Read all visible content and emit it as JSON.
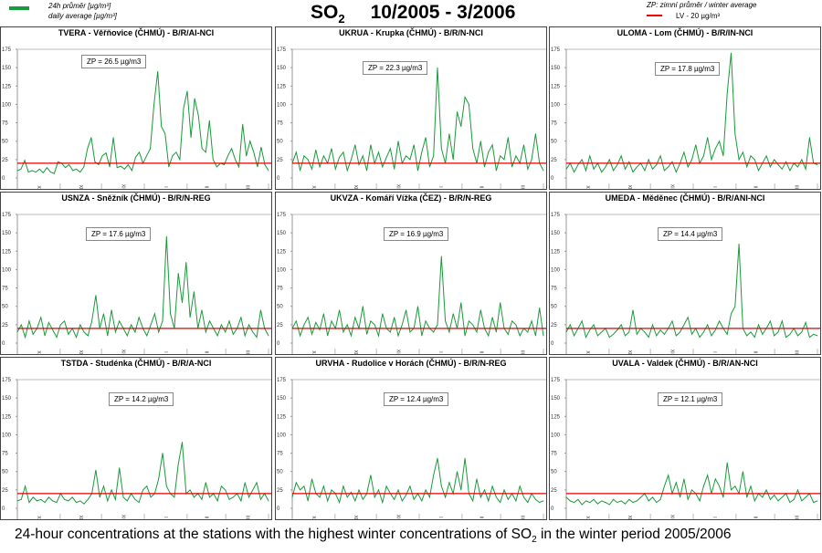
{
  "header": {
    "title_main": "SO",
    "title_sub": "2",
    "period": "10/2005 - 3/2006",
    "legend_left": {
      "line1": "24h průměr [µg/m³]",
      "line2": "daily average [µg/m³]",
      "color": "#1a9a3a"
    },
    "legend_right": {
      "line1": "ZP: zimní průměr /  winter average",
      "line2": "LV  - 20 µg/m³",
      "color": "#e00000"
    }
  },
  "caption": {
    "pre": "24-hour concentrations at the stations with the highest winter concentrations of SO",
    "sub": "2",
    "post": " in the winter period 2005/2006"
  },
  "chart_data": [
    {
      "type": "line",
      "title": "TVERA -  Věřňovice (ČHMÚ) - B/R/AI-NCI",
      "zp": "ZP = 26.5 µg/m3",
      "ylim": [
        0,
        175
      ],
      "yticks": [
        0,
        25,
        50,
        75,
        100,
        125,
        150,
        175
      ],
      "xticks": [
        "X",
        "XI",
        "XII",
        "I",
        "II",
        "III"
      ],
      "limit": 20,
      "values": [
        10,
        12,
        24,
        8,
        10,
        8,
        12,
        7,
        14,
        8,
        6,
        22,
        20,
        14,
        18,
        10,
        12,
        8,
        15,
        40,
        55,
        22,
        18,
        30,
        34,
        15,
        55,
        14,
        16,
        12,
        18,
        10,
        28,
        35,
        20,
        30,
        40,
        100,
        145,
        70,
        60,
        15,
        30,
        35,
        25,
        95,
        118,
        55,
        108,
        85,
        40,
        35,
        78,
        25,
        15,
        20,
        18,
        30,
        40,
        25,
        15,
        73,
        30,
        50,
        35,
        15,
        42,
        18,
        10
      ]
    },
    {
      "type": "line",
      "title": "UKRUA - Krupka (ČHMÚ) - B/R/N-NCI",
      "zp": "ZP = 22.3 µg/m3",
      "ylim": [
        0,
        175
      ],
      "yticks": [
        0,
        25,
        50,
        75,
        100,
        125,
        150,
        175
      ],
      "xticks": [
        "X",
        "XI",
        "XII",
        "I",
        "II",
        "III"
      ],
      "limit": 20,
      "values": [
        20,
        35,
        10,
        30,
        25,
        12,
        38,
        15,
        30,
        20,
        40,
        12,
        28,
        35,
        10,
        25,
        45,
        18,
        30,
        10,
        45,
        20,
        35,
        15,
        28,
        40,
        12,
        50,
        20,
        30,
        25,
        45,
        10,
        35,
        55,
        15,
        30,
        150,
        40,
        20,
        60,
        25,
        90,
        70,
        110,
        100,
        40,
        20,
        50,
        15,
        35,
        45,
        10,
        30,
        25,
        55,
        15,
        30,
        20,
        45,
        12,
        25,
        60,
        20,
        10
      ]
    },
    {
      "type": "line",
      "title": "ULOMA - Lom (ČHMÚ) - B/R/IN-NCI",
      "zp": "ZP = 17.8 µg/m3",
      "ylim": [
        0,
        175
      ],
      "yticks": [
        0,
        25,
        50,
        75,
        100,
        125,
        150,
        175
      ],
      "xticks": [
        "X",
        "XI",
        "XII",
        "I",
        "II",
        "III"
      ],
      "limit": 20,
      "values": [
        12,
        20,
        8,
        18,
        25,
        10,
        30,
        12,
        20,
        8,
        15,
        25,
        10,
        18,
        30,
        12,
        22,
        8,
        15,
        20,
        10,
        25,
        12,
        18,
        30,
        10,
        15,
        22,
        8,
        20,
        35,
        15,
        25,
        45,
        20,
        30,
        55,
        25,
        40,
        50,
        30,
        115,
        170,
        60,
        25,
        35,
        15,
        30,
        25,
        10,
        20,
        30,
        15,
        25,
        18,
        12,
        22,
        10,
        20,
        15,
        25,
        12,
        55,
        20,
        18
      ]
    },
    {
      "type": "line",
      "title": "USNZA - Sněžník (ČHMÚ) - B/R/N-REG",
      "zp": "ZP = 17.6 µg/m3",
      "ylim": [
        0,
        175
      ],
      "yticks": [
        0,
        25,
        50,
        75,
        100,
        125,
        150,
        175
      ],
      "xticks": [
        "X",
        "XI",
        "XII",
        "I",
        "II",
        "III"
      ],
      "limit": 20,
      "values": [
        15,
        25,
        8,
        30,
        12,
        20,
        35,
        10,
        28,
        18,
        8,
        25,
        30,
        12,
        20,
        8,
        25,
        15,
        10,
        30,
        65,
        20,
        40,
        10,
        45,
        15,
        30,
        20,
        10,
        25,
        15,
        35,
        20,
        10,
        25,
        40,
        15,
        30,
        145,
        40,
        20,
        95,
        55,
        110,
        35,
        70,
        20,
        45,
        15,
        30,
        20,
        10,
        25,
        15,
        30,
        12,
        20,
        35,
        10,
        25,
        15,
        8,
        45,
        20,
        10
      ]
    },
    {
      "type": "line",
      "title": "UKVZA - Komáří Vížka (ČEZ) - B/R/N-REG",
      "zp": "ZP = 16.9 µg/m3",
      "ylim": [
        0,
        175
      ],
      "yticks": [
        0,
        25,
        50,
        75,
        100,
        125,
        150,
        175
      ],
      "xticks": [
        "X",
        "XI",
        "XII",
        "I",
        "II",
        "III"
      ],
      "limit": 20,
      "values": [
        20,
        30,
        10,
        25,
        35,
        12,
        28,
        18,
        40,
        10,
        30,
        20,
        45,
        15,
        25,
        10,
        35,
        20,
        50,
        12,
        30,
        25,
        10,
        40,
        20,
        15,
        35,
        10,
        25,
        45,
        15,
        20,
        50,
        10,
        30,
        20,
        15,
        25,
        118,
        30,
        15,
        40,
        20,
        55,
        10,
        30,
        25,
        15,
        45,
        20,
        10,
        35,
        15,
        55,
        20,
        12,
        30,
        25,
        10,
        20,
        15,
        30,
        10,
        48,
        10
      ]
    },
    {
      "type": "line",
      "title": "UMEDA - Měděnec (ČHMÚ) - B/R/ANI-NCI",
      "zp": "ZP = 14.4 µg/m3",
      "ylim": [
        0,
        175
      ],
      "yticks": [
        0,
        25,
        50,
        75,
        100,
        125,
        150,
        175
      ],
      "xticks": [
        "X",
        "XI",
        "XII",
        "I",
        "II",
        "III"
      ],
      "limit": 20,
      "values": [
        15,
        25,
        10,
        20,
        30,
        8,
        18,
        25,
        10,
        15,
        20,
        8,
        12,
        18,
        25,
        10,
        15,
        45,
        12,
        20,
        15,
        8,
        25,
        10,
        18,
        12,
        20,
        30,
        10,
        15,
        25,
        35,
        12,
        20,
        8,
        15,
        25,
        10,
        18,
        30,
        20,
        12,
        40,
        50,
        135,
        20,
        10,
        15,
        8,
        25,
        12,
        20,
        30,
        10,
        15,
        30,
        8,
        12,
        20,
        10,
        15,
        28,
        8,
        12,
        10
      ]
    },
    {
      "type": "line",
      "title": "TSTDA - Studénka (ČHMÚ) - B/R/A-NCI",
      "zp": "ZP = 14.2 µg/m3",
      "ylim": [
        0,
        175
      ],
      "yticks": [
        0,
        25,
        50,
        75,
        100,
        125,
        150,
        175
      ],
      "xticks": [
        "X",
        "XI",
        "XII",
        "I",
        "II",
        "III"
      ],
      "limit": 20,
      "values": [
        10,
        12,
        30,
        8,
        15,
        10,
        12,
        8,
        15,
        10,
        8,
        20,
        12,
        10,
        15,
        8,
        10,
        6,
        12,
        20,
        52,
        15,
        30,
        10,
        25,
        12,
        55,
        15,
        10,
        20,
        12,
        8,
        25,
        30,
        15,
        20,
        40,
        75,
        30,
        20,
        15,
        60,
        90,
        20,
        25,
        15,
        20,
        12,
        35,
        15,
        20,
        10,
        30,
        25,
        12,
        15,
        20,
        10,
        35,
        15,
        25,
        35,
        12,
        20,
        10
      ]
    },
    {
      "type": "line",
      "title": "URVHA - Rudolice v Horách (ČHMÚ) - B/R/N-REG",
      "zp": "ZP = 12.4 µg/m3",
      "ylim": [
        0,
        175
      ],
      "yticks": [
        0,
        25,
        50,
        75,
        100,
        125,
        150,
        175
      ],
      "xticks": [
        "X",
        "XI",
        "XII",
        "I",
        "II",
        "III"
      ],
      "limit": 20,
      "values": [
        15,
        35,
        25,
        30,
        10,
        40,
        20,
        15,
        30,
        10,
        25,
        20,
        8,
        30,
        15,
        22,
        10,
        25,
        12,
        20,
        45,
        15,
        25,
        8,
        30,
        20,
        12,
        25,
        10,
        18,
        30,
        12,
        20,
        10,
        25,
        15,
        45,
        68,
        30,
        15,
        35,
        20,
        50,
        25,
        68,
        20,
        10,
        40,
        15,
        25,
        10,
        30,
        15,
        8,
        25,
        12,
        20,
        10,
        30,
        15,
        8,
        20,
        12,
        8,
        10
      ]
    },
    {
      "type": "line",
      "title": "UVALA - Valdek (ČHMÚ) - B/R/AN-NCI",
      "zp": "ZP = 12.1 µg/m3",
      "ylim": [
        0,
        175
      ],
      "yticks": [
        0,
        25,
        50,
        75,
        100,
        125,
        150,
        175
      ],
      "xticks": [
        "X",
        "XI",
        "XII",
        "I",
        "II",
        "III"
      ],
      "limit": 20,
      "values": [
        15,
        10,
        8,
        12,
        5,
        10,
        8,
        12,
        6,
        10,
        8,
        5,
        12,
        8,
        10,
        6,
        12,
        8,
        10,
        15,
        20,
        10,
        15,
        8,
        12,
        30,
        45,
        20,
        35,
        15,
        40,
        12,
        25,
        20,
        10,
        30,
        45,
        20,
        40,
        30,
        15,
        62,
        25,
        30,
        20,
        50,
        15,
        30,
        10,
        20,
        15,
        25,
        12,
        18,
        10,
        15,
        20,
        8,
        12,
        25,
        10,
        15,
        20,
        8,
        10
      ]
    }
  ]
}
